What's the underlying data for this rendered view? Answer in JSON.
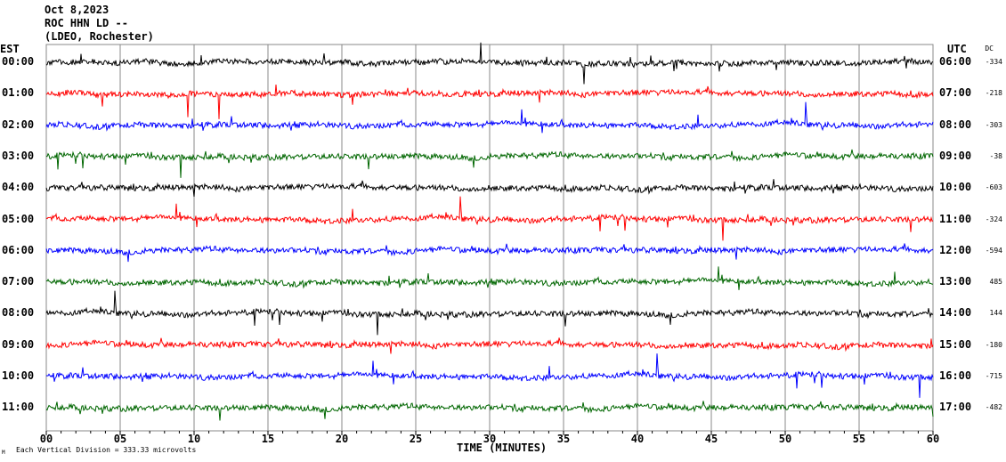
{
  "header": {
    "date": "Oct 8,2023",
    "station": "ROC HHN LD --",
    "network": "(LDEO, Rochester)"
  },
  "left_timezone": "EST",
  "right_timezone": "UTC",
  "dc_header": "DC",
  "footer": {
    "scale_note": "Each Vertical Division =  333.33 microvolts",
    "corner_mark": "M"
  },
  "chart_data": {
    "type": "line",
    "title": "ROC HHN LD -- helicorder, Oct 8,2023",
    "xlabel": "TIME (MINUTES)",
    "xlim": [
      0,
      60
    ],
    "x_ticks": [
      "00",
      "05",
      "10",
      "15",
      "20",
      "25",
      "30",
      "35",
      "40",
      "45",
      "50",
      "55",
      "60"
    ],
    "grid": "vertical every 5 minutes",
    "colors": [
      "#000000",
      "#ff0000",
      "#0000ff",
      "#006600"
    ],
    "rows": [
      {
        "est": "00:00",
        "utc": "06:00",
        "dc": "-334",
        "color": "#000000"
      },
      {
        "est": "01:00",
        "utc": "07:00",
        "dc": "-218",
        "color": "#ff0000"
      },
      {
        "est": "02:00",
        "utc": "08:00",
        "dc": "-303",
        "color": "#0000ff"
      },
      {
        "est": "03:00",
        "utc": "09:00",
        "dc": "-38",
        "color": "#006600"
      },
      {
        "est": "04:00",
        "utc": "10:00",
        "dc": "-603",
        "color": "#000000"
      },
      {
        "est": "05:00",
        "utc": "11:00",
        "dc": "-324",
        "color": "#ff0000"
      },
      {
        "est": "06:00",
        "utc": "12:00",
        "dc": "-594",
        "color": "#0000ff"
      },
      {
        "est": "07:00",
        "utc": "13:00",
        "dc": "485",
        "color": "#006600"
      },
      {
        "est": "08:00",
        "utc": "14:00",
        "dc": "144",
        "color": "#000000"
      },
      {
        "est": "09:00",
        "utc": "15:00",
        "dc": "-180",
        "color": "#ff0000"
      },
      {
        "est": "10:00",
        "utc": "16:00",
        "dc": "-715",
        "color": "#0000ff"
      },
      {
        "est": "11:00",
        "utc": "17:00",
        "dc": "-482",
        "color": "#006600"
      }
    ]
  }
}
